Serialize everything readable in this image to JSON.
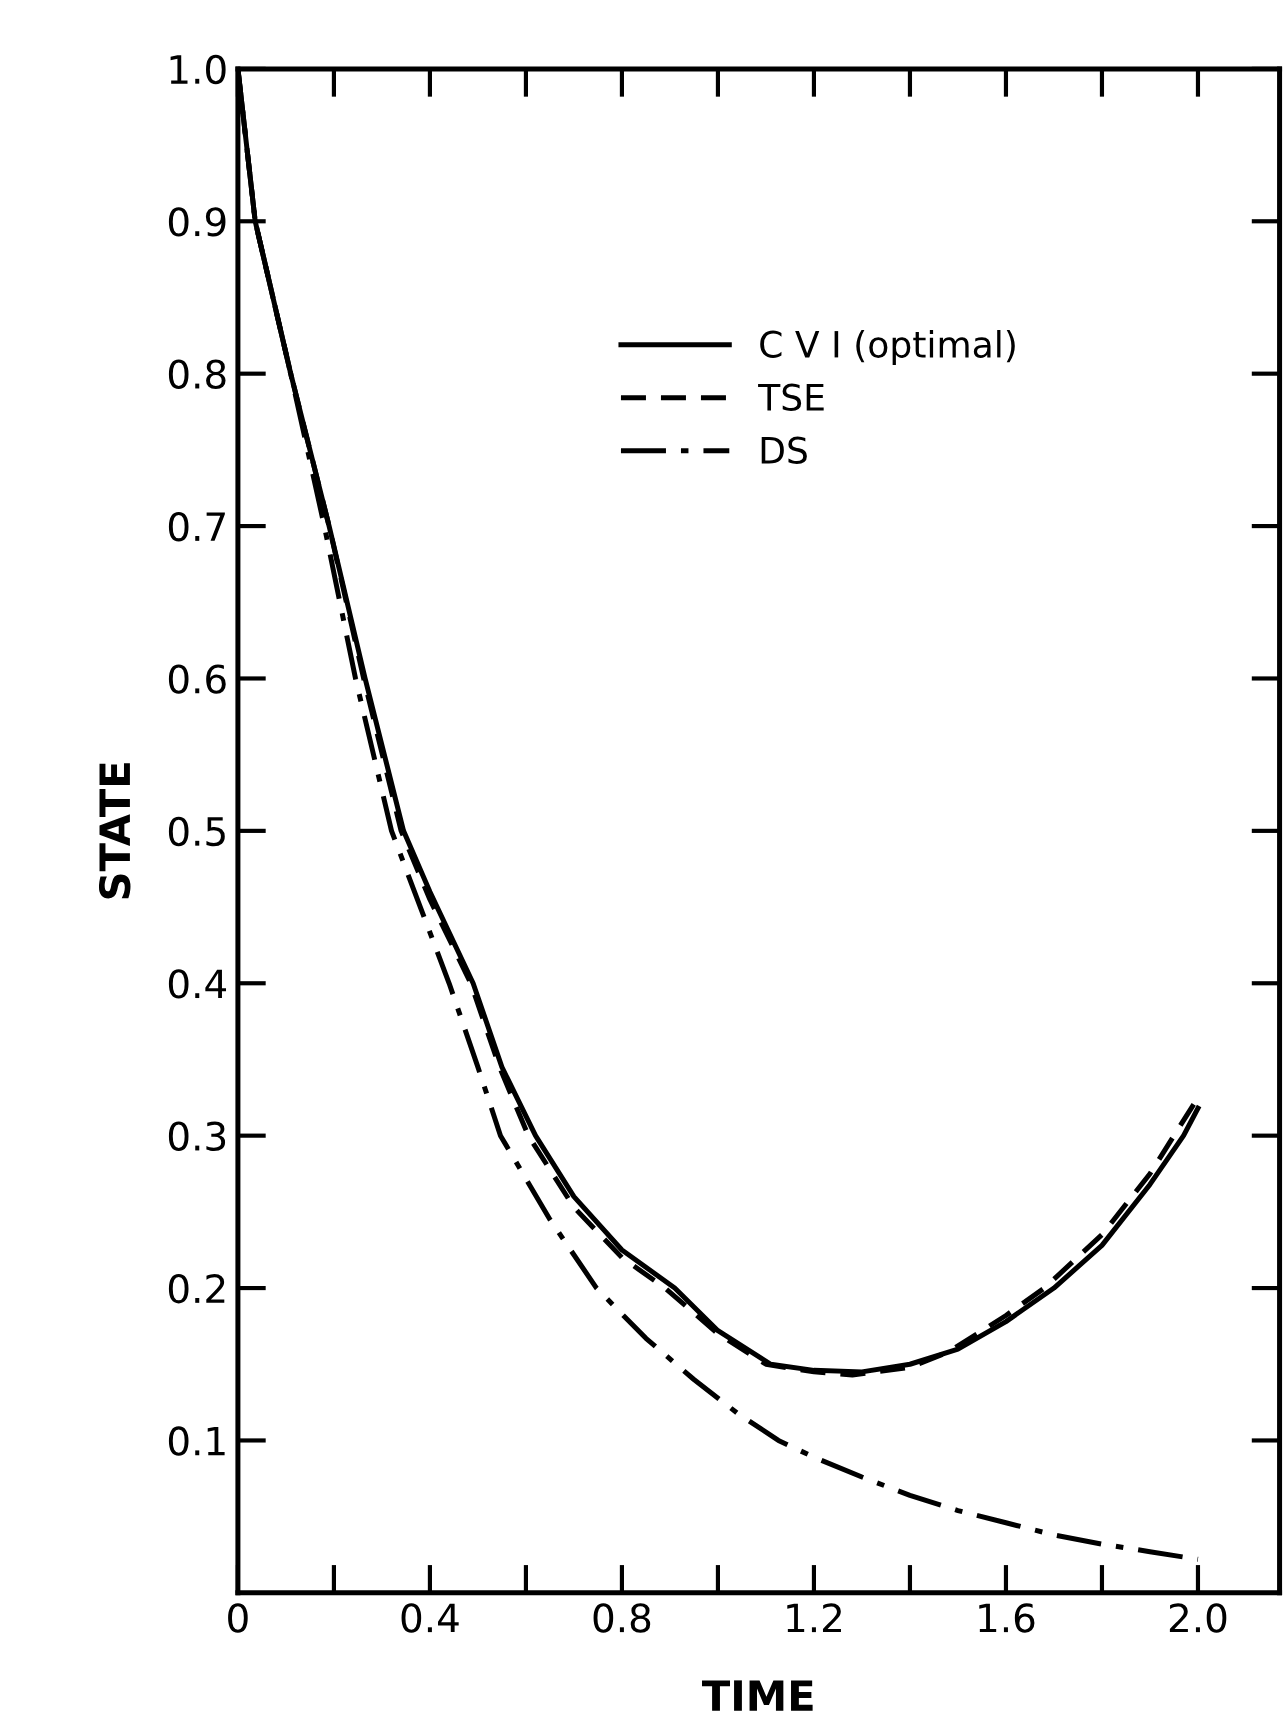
{
  "chart_data": {
    "type": "line",
    "xlabel": "TIME",
    "ylabel": "STATE",
    "xlim": [
      0,
      2.17
    ],
    "ylim": [
      0,
      1.0
    ],
    "xticks": [
      0,
      {
        "value": 0.2,
        "label": null
      },
      0.4,
      {
        "value": 0.6,
        "label": null
      },
      0.8,
      {
        "value": 1.0,
        "label": null
      },
      1.2,
      {
        "value": 1.4,
        "label": null
      },
      1.6,
      {
        "value": 1.8,
        "label": null
      },
      {
        "value": 2.0,
        "label": "2.0"
      }
    ],
    "yticks": [
      0.1,
      0.2,
      0.3,
      0.4,
      0.5,
      0.6,
      0.7,
      0.8,
      0.9,
      {
        "value": 1.0,
        "label": "1.0"
      }
    ],
    "grid": false,
    "legend": "top right",
    "series": [
      {
        "name": "C V I (optimal)",
        "color": "#000000",
        "line_style": "solid",
        "x": [
          0,
          0.036,
          0.11,
          0.19,
          0.265,
          0.345,
          0.4,
          0.49,
          0.55,
          0.62,
          0.7,
          0.8,
          0.91,
          1.0,
          1.11,
          1.2,
          1.3,
          1.4,
          1.5,
          1.6,
          1.7,
          1.8,
          1.9,
          1.97,
          2.0
        ],
        "values": [
          1.0,
          0.9,
          0.8,
          0.7,
          0.6,
          0.5,
          0.46,
          0.4,
          0.345,
          0.3,
          0.26,
          0.225,
          0.2,
          0.172,
          0.15,
          0.146,
          0.145,
          0.15,
          0.16,
          0.178,
          0.2,
          0.228,
          0.268,
          0.3,
          0.318
        ]
      },
      {
        "name": "TSE",
        "color": "#000000",
        "line_style": "dashed",
        "x": [
          0,
          0.036,
          0.11,
          0.19,
          0.262,
          0.34,
          0.4,
          0.485,
          0.545,
          0.605,
          0.7,
          0.8,
          0.89,
          1.0,
          1.1,
          1.2,
          1.28,
          1.4,
          1.48,
          1.6,
          1.68,
          1.8,
          1.9,
          1.95,
          2.0
        ],
        "values": [
          1.0,
          0.9,
          0.8,
          0.7,
          0.6,
          0.5,
          0.455,
          0.4,
          0.345,
          0.3,
          0.253,
          0.22,
          0.2,
          0.17,
          0.15,
          0.145,
          0.143,
          0.148,
          0.158,
          0.182,
          0.2,
          0.235,
          0.275,
          0.3,
          0.325
        ]
      },
      {
        "name": "DS",
        "color": "#000000",
        "line_style": "dashdot",
        "x": [
          0,
          0.036,
          0.11,
          0.18,
          0.245,
          0.32,
          0.38,
          0.44,
          0.5,
          0.547,
          0.65,
          0.747,
          0.85,
          0.95,
          1.04,
          1.126,
          1.2,
          1.3,
          1.4,
          1.5,
          1.6,
          1.7,
          1.8,
          1.9,
          2.0
        ],
        "values": [
          1.0,
          0.9,
          0.8,
          0.7,
          0.6,
          0.5,
          0.45,
          0.4,
          0.345,
          0.3,
          0.245,
          0.2,
          0.167,
          0.14,
          0.118,
          0.1,
          0.089,
          0.076,
          0.064,
          0.054,
          0.046,
          0.038,
          0.032,
          0.027,
          0.022
        ]
      }
    ]
  }
}
